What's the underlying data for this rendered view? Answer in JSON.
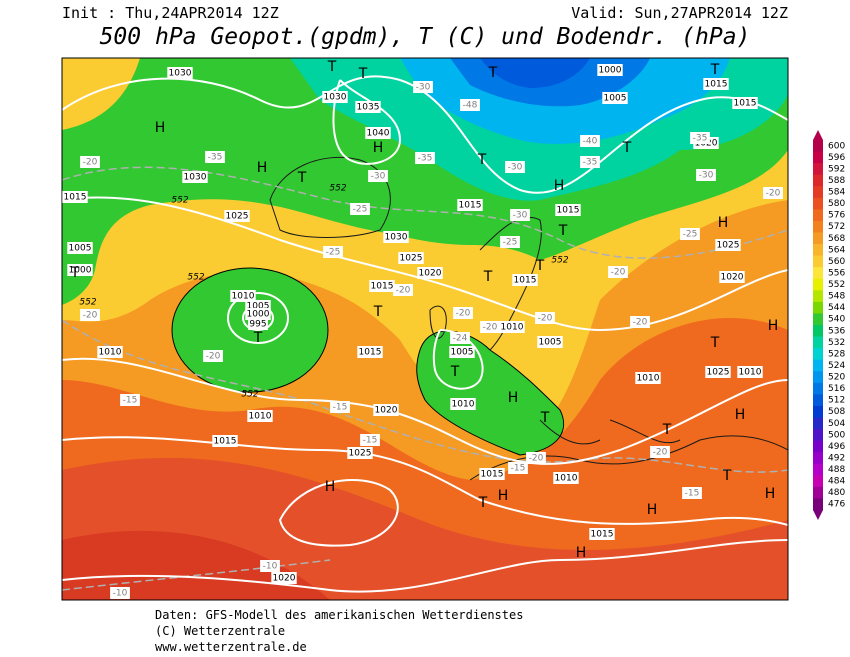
{
  "header": {
    "init": "Init : Thu,24APR2014 12Z",
    "valid": "Valid: Sun,27APR2014 12Z",
    "title": "500 hPa Geopot.(gpdm), T (C) und Bodendr. (hPa)"
  },
  "colorbar": {
    "values": [
      600,
      596,
      592,
      588,
      584,
      580,
      576,
      572,
      568,
      564,
      560,
      556,
      552,
      548,
      544,
      540,
      536,
      532,
      528,
      524,
      520,
      516,
      512,
      508,
      504,
      500,
      496,
      492,
      488,
      484,
      480,
      476
    ],
    "colors": [
      "#b4004b",
      "#c80046",
      "#d2143c",
      "#dc2828",
      "#e43c24",
      "#ea5020",
      "#ef6a1e",
      "#f2821e",
      "#f59a22",
      "#f8b42a",
      "#fbcc32",
      "#fde63a",
      "#e6f000",
      "#b4e600",
      "#78d800",
      "#32c832",
      "#00c864",
      "#00d2a0",
      "#00d2d2",
      "#00b4f0",
      "#0096f0",
      "#0078e6",
      "#005adc",
      "#003cd2",
      "#2828c8",
      "#5014c8",
      "#7800c8",
      "#9600c8",
      "#b400c8",
      "#c800b4",
      "#a00096",
      "#780078"
    ]
  },
  "map": {
    "pressure_labels": [
      "1030",
      "1030",
      "1035",
      "1040",
      "1030",
      "1025",
      "1015",
      "1005",
      "1000",
      "1010",
      "1005",
      "1000",
      "995",
      "1010",
      "1010",
      "1015",
      "1025",
      "1020",
      "1015",
      "1030",
      "1025",
      "1020",
      "1015",
      "1015",
      "1015",
      "1015",
      "1010",
      "1005",
      "1010",
      "1005",
      "1010",
      "1020",
      "1025",
      "1015",
      "1015",
      "1020",
      "1005",
      "1000",
      "1015",
      "1010",
      "1015",
      "1020",
      "1025",
      "1010"
    ],
    "temperature_labels": [
      "-20",
      "-35",
      "-30",
      "-48",
      "-40",
      "-35",
      "-35",
      "-30",
      "-30",
      "-30",
      "-25",
      "-25",
      "-20",
      "-25",
      "-20",
      "-20",
      "-15",
      "-15",
      "-15",
      "-20",
      "-20",
      "-20",
      "-15",
      "-10",
      "-10",
      "-25",
      "-30",
      "-35",
      "-20",
      "-20",
      "-24",
      "-20",
      "-15",
      "-20",
      "-20"
    ],
    "geopotential_labels": [
      "552",
      "552",
      "552",
      "552",
      "552",
      "552"
    ],
    "pressure_centers": [
      "H",
      "H",
      "H",
      "T",
      "T",
      "T",
      "T",
      "T",
      "T",
      "T",
      "H",
      "T",
      "H",
      "T",
      "T",
      "T",
      "T",
      "T",
      "T",
      "H",
      "T",
      "H",
      "T",
      "H",
      "H",
      "H",
      "H",
      "T",
      "H",
      "T",
      "T",
      "H"
    ]
  },
  "footer": {
    "line1": "Daten: GFS-Modell des amerikanischen Wetterdienstes",
    "line2": "(C) Wetterzentrale",
    "line3": "www.wetterzentrale.de"
  }
}
